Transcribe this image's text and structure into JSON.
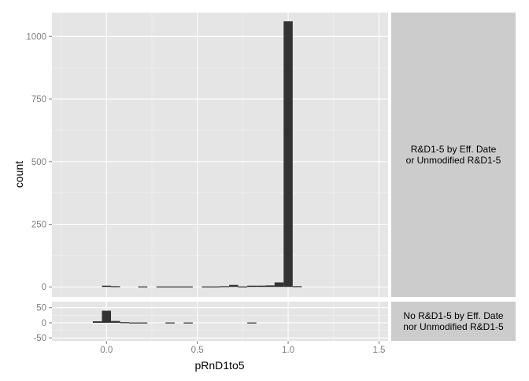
{
  "chart_data": {
    "type": "bar",
    "xlabel": "pRnD1to5",
    "ylabel": "count",
    "xlim": [
      -0.3,
      1.55
    ],
    "x_ticks": [
      0.0,
      0.5,
      1.0,
      1.5
    ],
    "x_tick_labels": [
      "0.0",
      "0.5",
      "1.0",
      "1.5"
    ],
    "bin_width": 0.05,
    "grid": true,
    "panels": [
      {
        "strip_label_lines": [
          "R&D1-5 by Eff. Date",
          "or Unmodified R&D1-5"
        ],
        "ylim": [
          -40,
          1095
        ],
        "y_ticks": [
          0,
          250,
          500,
          750,
          1000
        ],
        "y_tick_labels": [
          "0",
          "250",
          "500",
          "750",
          "1000"
        ],
        "bins": [
          {
            "x": 0.0,
            "count": 5
          },
          {
            "x": 0.05,
            "count": 3
          },
          {
            "x": 0.2,
            "count": 2
          },
          {
            "x": 0.3,
            "count": 2
          },
          {
            "x": 0.35,
            "count": 2
          },
          {
            "x": 0.4,
            "count": 2
          },
          {
            "x": 0.45,
            "count": 2
          },
          {
            "x": 0.55,
            "count": 2
          },
          {
            "x": 0.6,
            "count": 2
          },
          {
            "x": 0.65,
            "count": 3
          },
          {
            "x": 0.7,
            "count": 8
          },
          {
            "x": 0.75,
            "count": 2
          },
          {
            "x": 0.8,
            "count": 5
          },
          {
            "x": 0.85,
            "count": 5
          },
          {
            "x": 0.9,
            "count": 6
          },
          {
            "x": 0.95,
            "count": 18
          },
          {
            "x": 1.0,
            "count": 1060
          },
          {
            "x": 1.05,
            "count": 3
          }
        ]
      },
      {
        "strip_label_lines": [
          "No R&D1-5 by Eff. Date",
          "nor Unmodified R&D1-5"
        ],
        "ylim": [
          -60,
          70
        ],
        "y_ticks": [
          -50,
          0,
          50
        ],
        "y_tick_labels": [
          "-50",
          "0",
          "50"
        ],
        "bins": [
          {
            "x": -0.05,
            "count": 5
          },
          {
            "x": 0.0,
            "count": 40
          },
          {
            "x": 0.05,
            "count": 6
          },
          {
            "x": 0.1,
            "count": 2
          },
          {
            "x": 0.15,
            "count": 1
          },
          {
            "x": 0.2,
            "count": 1
          },
          {
            "x": 0.35,
            "count": 1
          },
          {
            "x": 0.45,
            "count": 1
          },
          {
            "x": 0.8,
            "count": 1
          }
        ]
      }
    ],
    "colors": {
      "bar": "#333333",
      "panel_bg": "#e5e5e5",
      "grid_major": "#ffffff",
      "grid_minor": "#f2f2f2",
      "strip_bg": "#cccccc",
      "axis_text": "#7f7f7f",
      "label_text": "#000000"
    }
  }
}
